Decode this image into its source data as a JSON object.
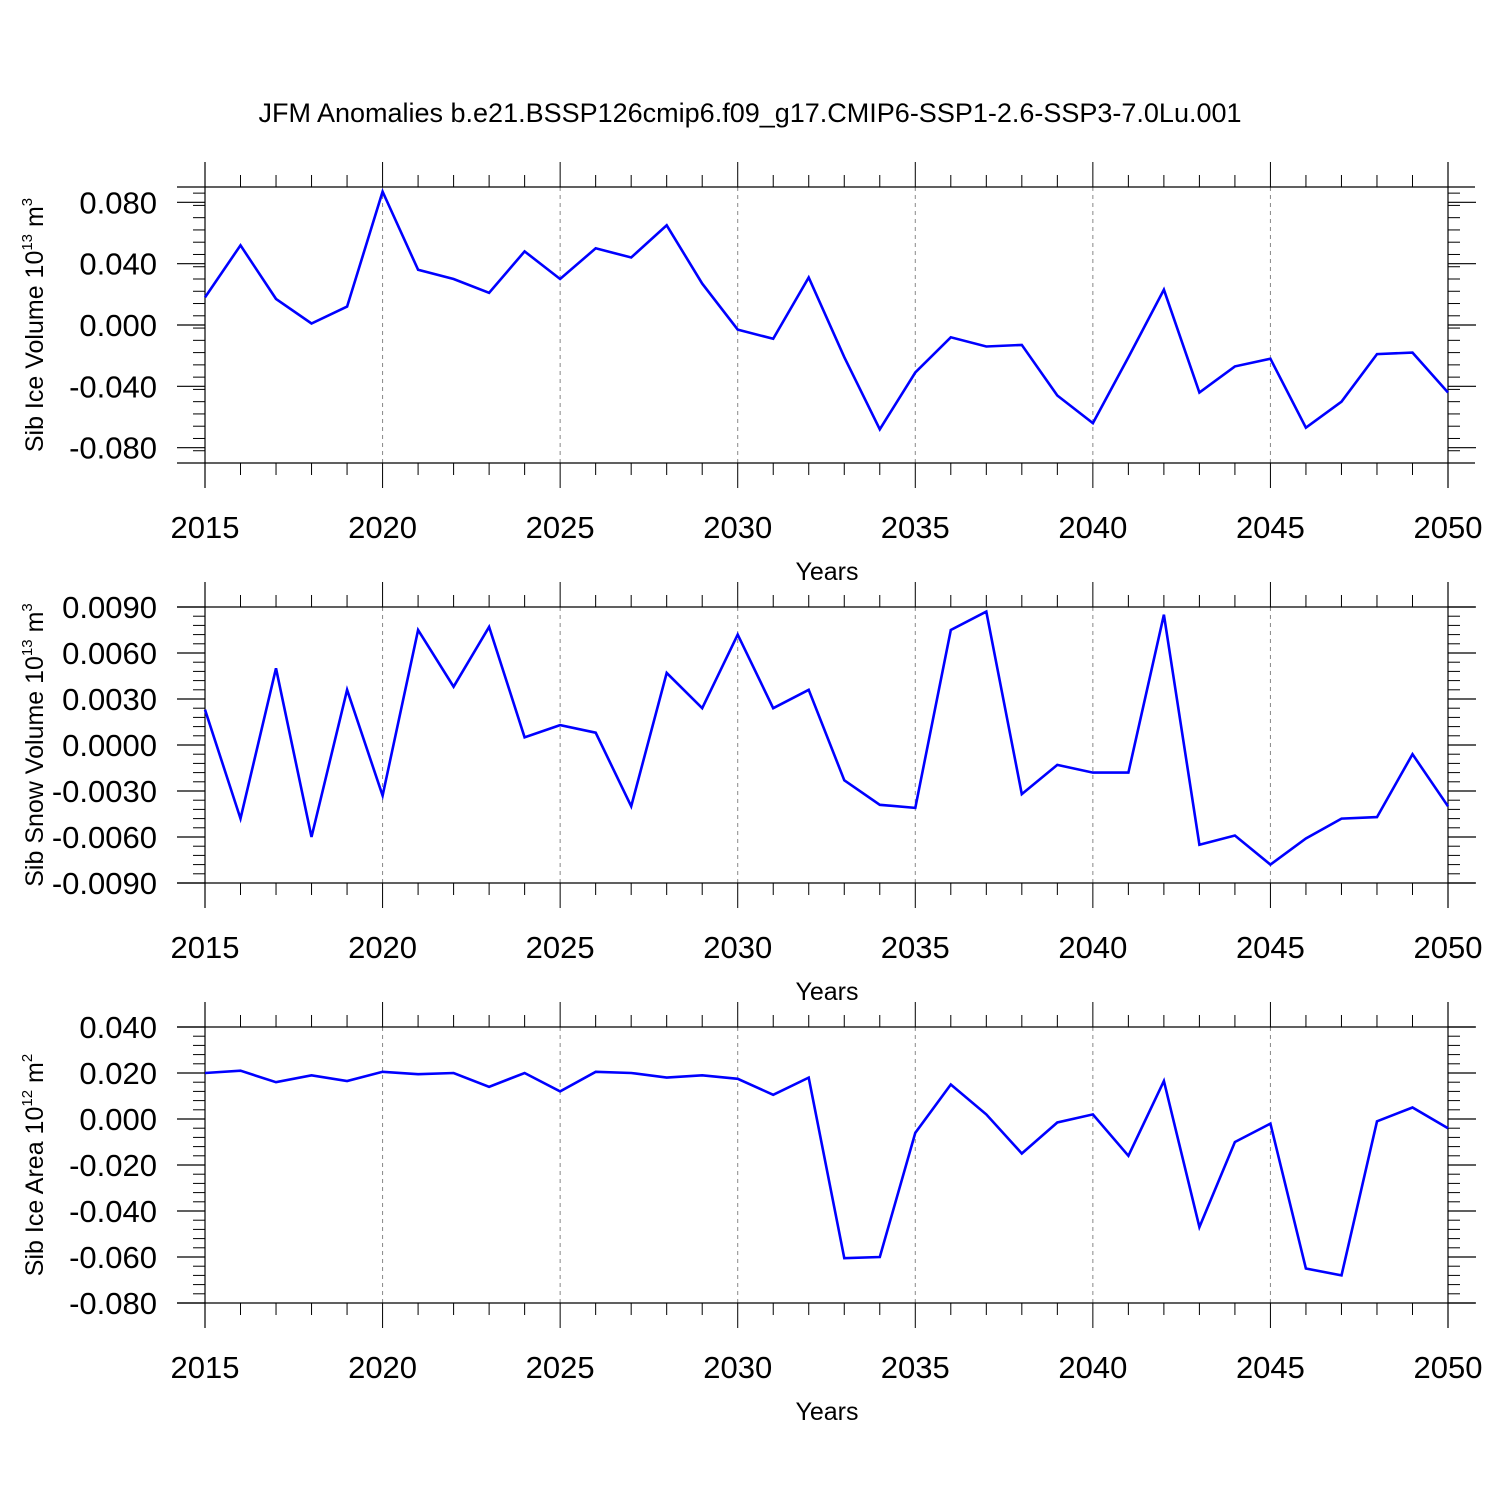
{
  "title": "JFM Anomalies b.e21.BSSP126cmip6.f09_g17.CMIP6-SSP1-2.6-SSP3-7.0Lu.001",
  "line_color": "#0000ff",
  "chart_data": [
    {
      "type": "line",
      "xlabel": "Years",
      "ylabel": "Sib Ice Volume 10",
      "ylabel_exp": "13",
      "ylabel_unit": " m",
      "ylabel_unit_exp": "3",
      "xlim": [
        2015,
        2050
      ],
      "ylim": [
        -0.09,
        0.09
      ],
      "xticks": [
        2015,
        2020,
        2025,
        2030,
        2035,
        2040,
        2045,
        2050
      ],
      "xtick_labels": [
        "2015",
        "2020",
        "2025",
        "2030",
        "2035",
        "2040",
        "2045",
        "2050"
      ],
      "yticks": [
        -0.08,
        -0.04,
        0.0,
        0.04,
        0.08
      ],
      "ytick_labels": [
        "-0.080",
        "-0.040",
        "0.000",
        "0.040",
        "0.080"
      ],
      "grid": "vertical dashed at major x ticks",
      "series": [
        {
          "x": [
            2015,
            2016,
            2017,
            2018,
            2019,
            2020,
            2021,
            2022,
            2023,
            2024,
            2025,
            2026,
            2027,
            2028,
            2029,
            2030,
            2031,
            2032,
            2033,
            2034,
            2035,
            2036,
            2037,
            2038,
            2039,
            2040,
            2041,
            2042,
            2043,
            2044,
            2045,
            2046,
            2047,
            2048,
            2049,
            2050
          ],
          "values": [
            0.018,
            0.052,
            0.017,
            0.001,
            0.012,
            0.087,
            0.036,
            0.03,
            0.021,
            0.048,
            0.03,
            0.05,
            0.044,
            0.065,
            0.027,
            -0.003,
            -0.009,
            0.031,
            -0.021,
            -0.068,
            -0.031,
            -0.008,
            -0.014,
            -0.013,
            -0.046,
            -0.064,
            -0.021,
            0.023,
            -0.044,
            -0.027,
            -0.022,
            -0.067,
            -0.05,
            -0.019,
            -0.018,
            -0.044
          ]
        }
      ]
    },
    {
      "type": "line",
      "xlabel": "Years",
      "ylabel": "Sib Snow Volume 10",
      "ylabel_exp": "13",
      "ylabel_unit": " m",
      "ylabel_unit_exp": "3",
      "xlim": [
        2015,
        2050
      ],
      "ylim": [
        -0.009,
        0.009
      ],
      "xticks": [
        2015,
        2020,
        2025,
        2030,
        2035,
        2040,
        2045,
        2050
      ],
      "xtick_labels": [
        "2015",
        "2020",
        "2025",
        "2030",
        "2035",
        "2040",
        "2045",
        "2050"
      ],
      "yticks": [
        -0.009,
        -0.006,
        -0.003,
        0.0,
        0.003,
        0.006,
        0.009
      ],
      "ytick_labels": [
        "-0.0090",
        "-0.0060",
        "-0.0030",
        "0.0000",
        "0.0030",
        "0.0060",
        "0.0090"
      ],
      "grid": "vertical dashed at major x ticks",
      "series": [
        {
          "x": [
            2015,
            2016,
            2017,
            2018,
            2019,
            2020,
            2021,
            2022,
            2023,
            2024,
            2025,
            2026,
            2027,
            2028,
            2029,
            2030,
            2031,
            2032,
            2033,
            2034,
            2035,
            2036,
            2037,
            2038,
            2039,
            2040,
            2041,
            2042,
            2043,
            2044,
            2045,
            2046,
            2047,
            2048,
            2049,
            2050
          ],
          "values": [
            0.0023,
            -0.0048,
            0.005,
            -0.006,
            0.0036,
            -0.0033,
            0.0075,
            0.0038,
            0.0077,
            0.0005,
            0.0013,
            0.0008,
            -0.004,
            0.0047,
            0.0024,
            0.0072,
            0.0024,
            0.0036,
            -0.0023,
            -0.0039,
            -0.0041,
            0.0075,
            0.0087,
            -0.0032,
            -0.0013,
            -0.0018,
            -0.0018,
            0.0085,
            -0.0065,
            -0.0059,
            -0.0078,
            -0.0061,
            -0.0048,
            -0.0047,
            -0.0006,
            -0.004
          ]
        }
      ]
    },
    {
      "type": "line",
      "xlabel": "Years",
      "ylabel": "Sib Ice Area 10",
      "ylabel_exp": "12",
      "ylabel_unit": " m",
      "ylabel_unit_exp": "2",
      "xlim": [
        2015,
        2050
      ],
      "ylim": [
        -0.08,
        0.04
      ],
      "xticks": [
        2015,
        2020,
        2025,
        2030,
        2035,
        2040,
        2045,
        2050
      ],
      "xtick_labels": [
        "2015",
        "2020",
        "2025",
        "2030",
        "2035",
        "2040",
        "2045",
        "2050"
      ],
      "yticks": [
        -0.08,
        -0.06,
        -0.04,
        -0.02,
        0.0,
        0.02,
        0.04
      ],
      "ytick_labels": [
        "-0.080",
        "-0.060",
        "-0.040",
        "-0.020",
        "0.000",
        "0.020",
        "0.040"
      ],
      "grid": "vertical dashed at major x ticks",
      "series": [
        {
          "x": [
            2015,
            2016,
            2017,
            2018,
            2019,
            2020,
            2021,
            2022,
            2023,
            2024,
            2025,
            2026,
            2027,
            2028,
            2029,
            2030,
            2031,
            2032,
            2033,
            2034,
            2035,
            2036,
            2037,
            2038,
            2039,
            2040,
            2041,
            2042,
            2043,
            2044,
            2045,
            2046,
            2047,
            2048,
            2049,
            2050
          ],
          "values": [
            0.02,
            0.021,
            0.016,
            0.019,
            0.0165,
            0.0205,
            0.0195,
            0.02,
            0.014,
            0.02,
            0.012,
            0.0205,
            0.02,
            0.018,
            0.019,
            0.0175,
            0.0105,
            0.018,
            -0.0605,
            -0.06,
            -0.006,
            0.015,
            0.002,
            -0.015,
            -0.0015,
            0.002,
            -0.016,
            0.0165,
            -0.047,
            -0.01,
            -0.002,
            -0.065,
            -0.068,
            -0.001,
            0.005,
            -0.004
          ]
        }
      ]
    }
  ]
}
